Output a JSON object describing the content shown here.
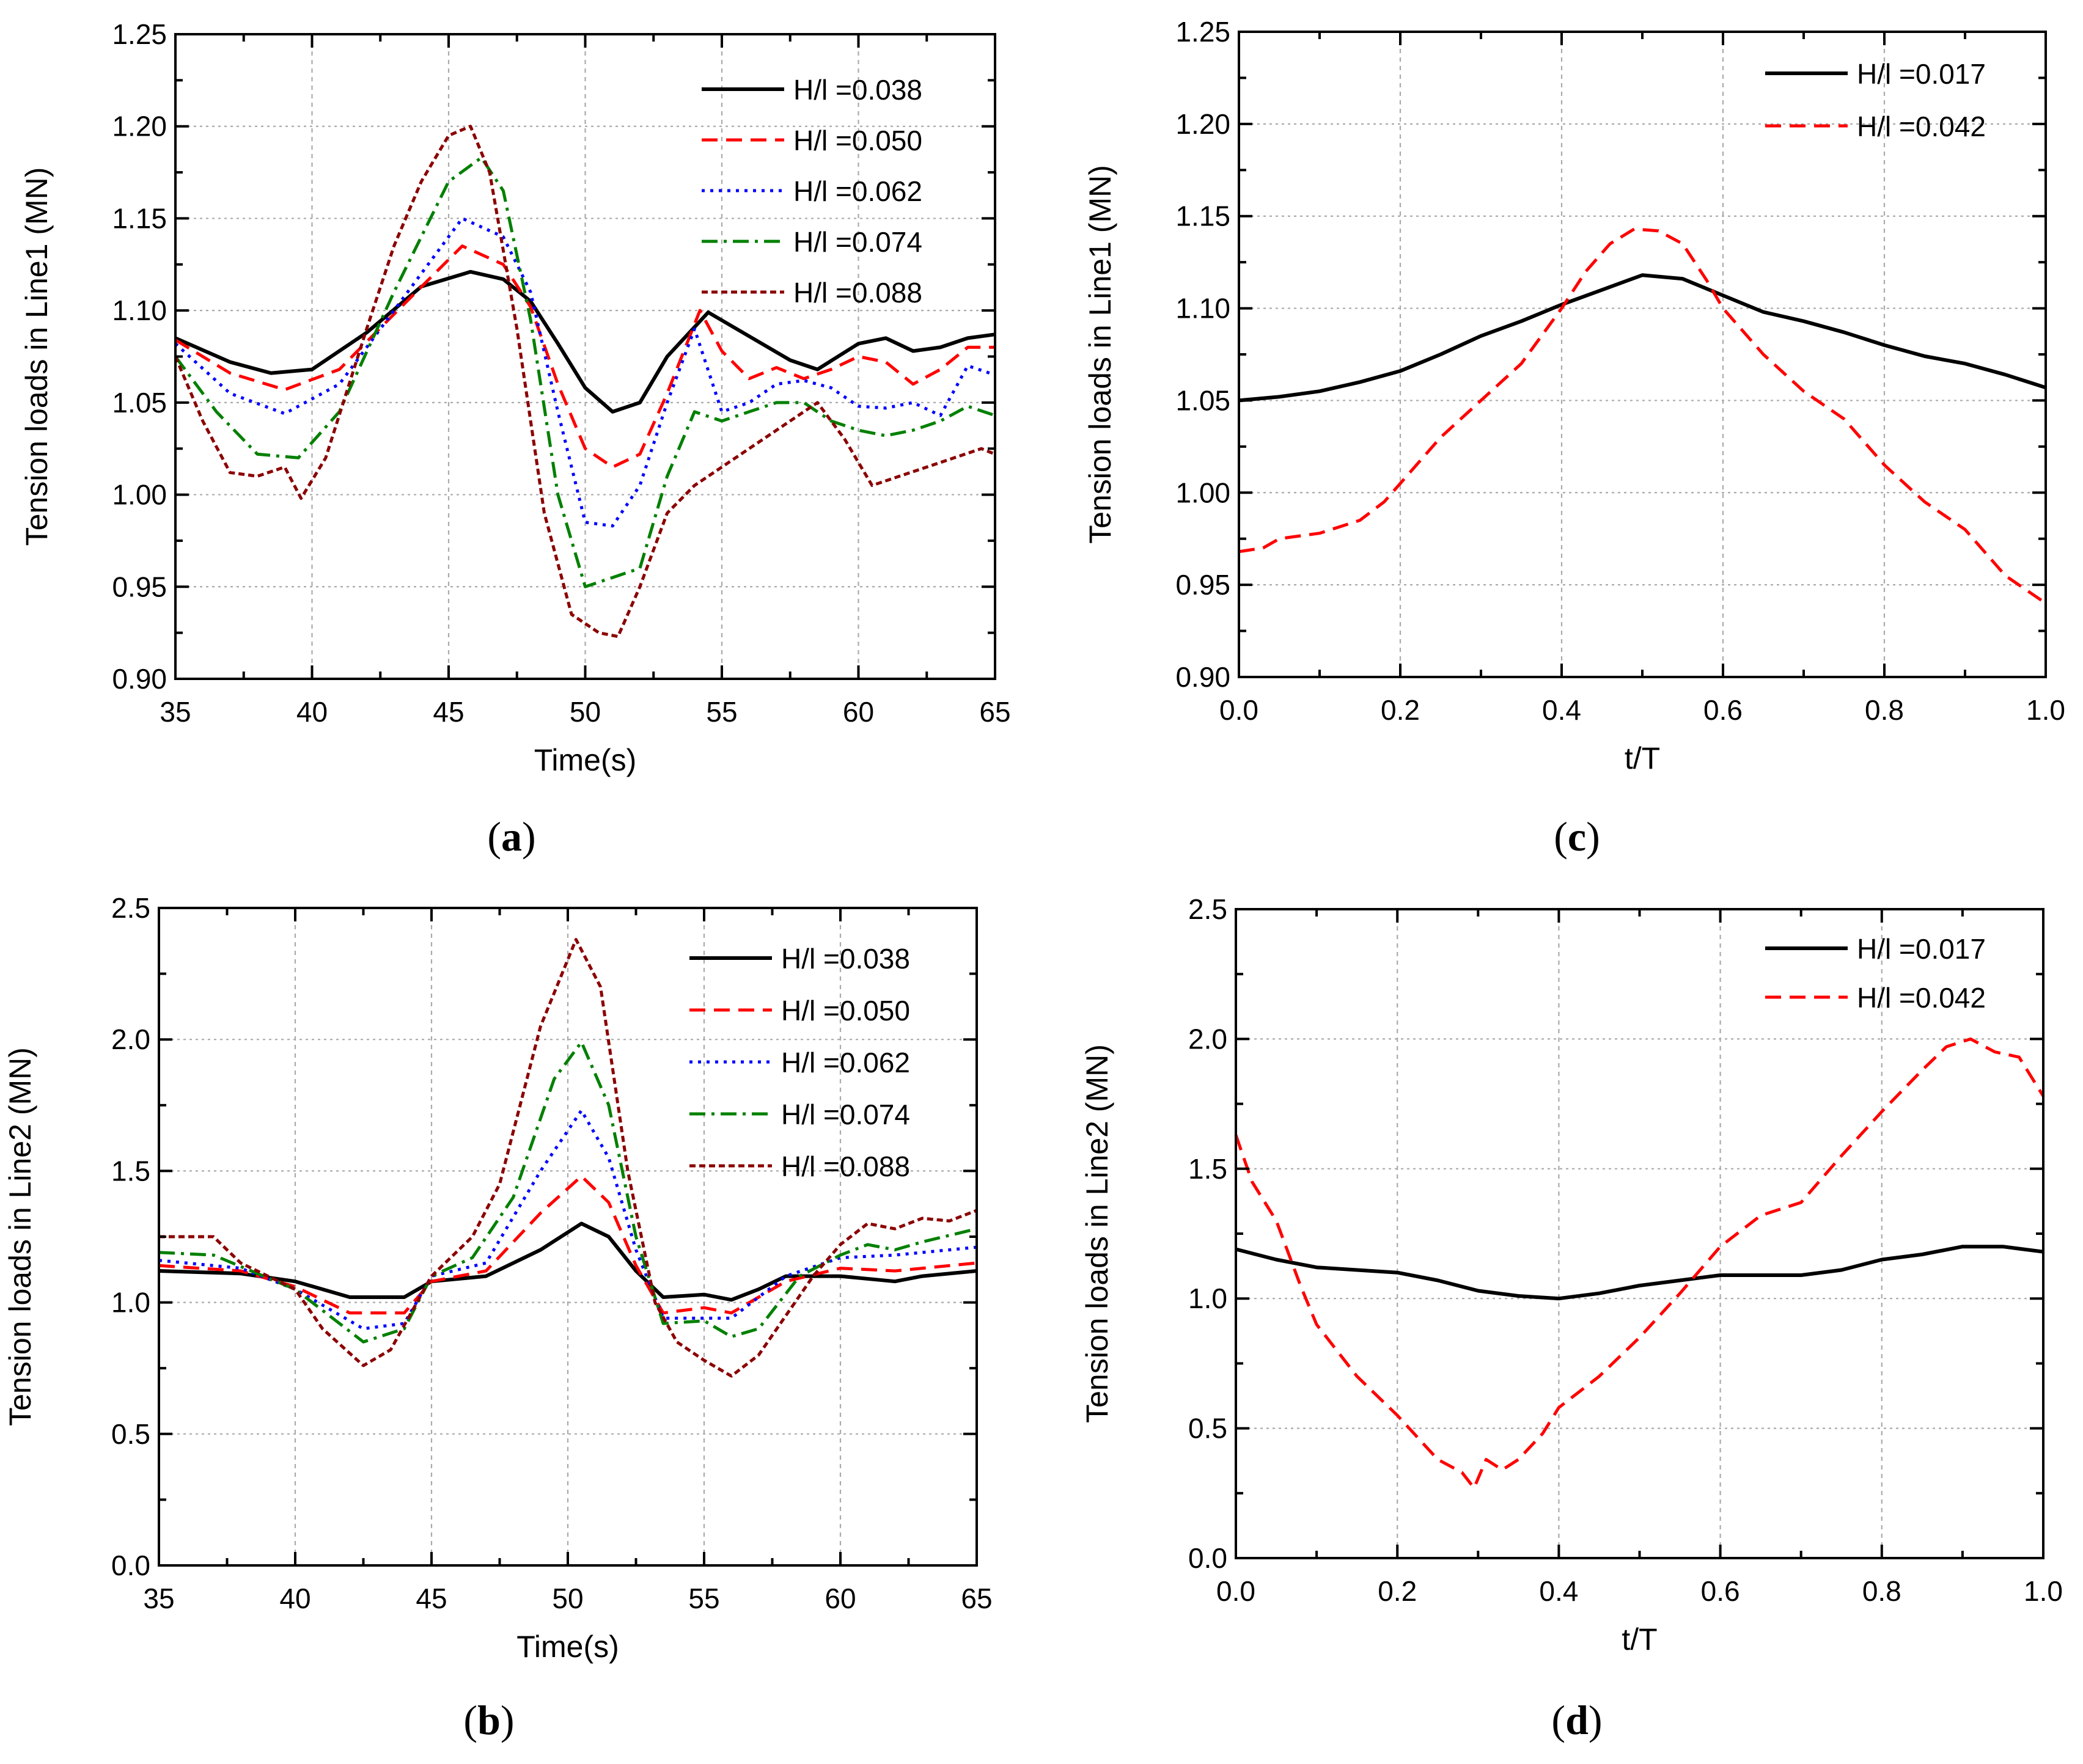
{
  "figure": {
    "captions": {
      "a": "a",
      "b": "b",
      "c": "c",
      "d": "d"
    }
  },
  "chart_data": [
    {
      "id": "a",
      "type": "line",
      "xlabel": "Time(s)",
      "ylabel": "Tension loads in Line1 (MN)",
      "xlim": [
        35,
        65
      ],
      "ylim": [
        0.9,
        1.25
      ],
      "xticks": [
        "35",
        "40",
        "45",
        "50",
        "55",
        "60",
        "65"
      ],
      "yticks": [
        "0.90",
        "0.95",
        "1.00",
        "1.05",
        "1.10",
        "1.15",
        "1.20",
        "1.25"
      ],
      "grid": true,
      "legend_position": "top-right",
      "series": [
        {
          "name": "H/l =0.038",
          "color": "#000000",
          "dash": "solid",
          "x": [
            35,
            37,
            38.5,
            40,
            42,
            44,
            45.8,
            47,
            48,
            49,
            50,
            51,
            52,
            53,
            54.5,
            56,
            57.5,
            58.5,
            60,
            61,
            62,
            63,
            64,
            65
          ],
          "y": [
            1.085,
            1.072,
            1.066,
            1.068,
            1.088,
            1.113,
            1.121,
            1.117,
            1.105,
            1.082,
            1.058,
            1.045,
            1.05,
            1.075,
            1.099,
            1.086,
            1.073,
            1.068,
            1.082,
            1.085,
            1.078,
            1.08,
            1.085,
            1.087
          ]
        },
        {
          "name": "H/l =0.050",
          "color": "#ff0000",
          "dash": "dashed",
          "x": [
            35,
            37,
            39,
            41,
            43,
            45.5,
            47,
            48,
            49,
            50,
            51,
            52,
            53,
            54.2,
            55,
            56,
            57,
            58,
            59,
            60,
            61,
            62,
            63,
            64,
            65
          ],
          "y": [
            1.084,
            1.066,
            1.057,
            1.068,
            1.098,
            1.135,
            1.125,
            1.102,
            1.06,
            1.025,
            1.015,
            1.022,
            1.055,
            1.1,
            1.078,
            1.063,
            1.069,
            1.063,
            1.068,
            1.075,
            1.072,
            1.06,
            1.068,
            1.08,
            1.08
          ]
        },
        {
          "name": "H/l =0.062",
          "color": "#0000ff",
          "dash": "dotted",
          "x": [
            35,
            37,
            39,
            41,
            43,
            45.5,
            47,
            48,
            49,
            50,
            51,
            52,
            53,
            54,
            55,
            56,
            57,
            58,
            59,
            60,
            61,
            62,
            63,
            64,
            65
          ],
          "y": [
            1.082,
            1.055,
            1.044,
            1.06,
            1.1,
            1.15,
            1.14,
            1.11,
            1.045,
            0.985,
            0.983,
            1.005,
            1.05,
            1.09,
            1.045,
            1.05,
            1.06,
            1.062,
            1.058,
            1.048,
            1.047,
            1.05,
            1.043,
            1.07,
            1.065
          ]
        },
        {
          "name": "H/l =0.074",
          "color": "#008000",
          "dash": "dashdot",
          "x": [
            35,
            36.5,
            38,
            39.5,
            41,
            43,
            45,
            46.2,
            47,
            48,
            49,
            50,
            51,
            52,
            53,
            54,
            55,
            56,
            57,
            58,
            59,
            60,
            61,
            62,
            63,
            64,
            65
          ],
          "y": [
            1.075,
            1.045,
            1.022,
            1.02,
            1.045,
            1.11,
            1.17,
            1.183,
            1.165,
            1.095,
            1.0,
            0.95,
            0.955,
            0.96,
            1.01,
            1.045,
            1.04,
            1.045,
            1.05,
            1.05,
            1.04,
            1.035,
            1.032,
            1.035,
            1.04,
            1.048,
            1.043
          ]
        },
        {
          "name": "H/l =0.088",
          "color": "#8b0000",
          "dash": "shortdash",
          "x": [
            35,
            36,
            37,
            38,
            39,
            39.6,
            40.5,
            42,
            43,
            44,
            45,
            45.8,
            46.5,
            47.5,
            48.5,
            49.5,
            50.5,
            51.2,
            52,
            53,
            54,
            55,
            56,
            57,
            58,
            58.5,
            59.5,
            60.5,
            61.5,
            62.5,
            63.5,
            64.5,
            65
          ],
          "y": [
            1.075,
            1.04,
            1.012,
            1.01,
            1.015,
            0.998,
            1.02,
            1.09,
            1.135,
            1.17,
            1.195,
            1.2,
            1.175,
            1.09,
            0.99,
            0.935,
            0.925,
            0.923,
            0.95,
            0.99,
            1.005,
            1.015,
            1.025,
            1.035,
            1.045,
            1.05,
            1.03,
            1.005,
            1.01,
            1.015,
            1.02,
            1.025,
            1.022
          ]
        }
      ]
    },
    {
      "id": "b",
      "type": "line",
      "xlabel": "Time(s)",
      "ylabel": "Tension loads in Line2 (MN)",
      "xlim": [
        35,
        65
      ],
      "ylim": [
        0.0,
        2.5
      ],
      "xticks": [
        "35",
        "40",
        "45",
        "50",
        "55",
        "60",
        "65"
      ],
      "yticks": [
        "0.0",
        "0.5",
        "1.0",
        "1.5",
        "2.0",
        "2.5"
      ],
      "grid": true,
      "legend_position": "top-right",
      "series": [
        {
          "name": "H/l =0.038",
          "color": "#000000",
          "dash": "solid",
          "x": [
            35,
            38,
            40,
            42,
            44,
            45,
            47,
            49,
            50.5,
            51.5,
            52.5,
            53.5,
            55,
            56,
            57,
            58,
            60,
            62,
            63,
            65
          ],
          "y": [
            1.12,
            1.11,
            1.08,
            1.02,
            1.02,
            1.08,
            1.1,
            1.2,
            1.3,
            1.25,
            1.12,
            1.02,
            1.03,
            1.01,
            1.05,
            1.1,
            1.1,
            1.08,
            1.1,
            1.12
          ]
        },
        {
          "name": "H/l =0.050",
          "color": "#ff0000",
          "dash": "dashed",
          "x": [
            35,
            38,
            40,
            42,
            44,
            45,
            47,
            49,
            50.5,
            51.5,
            52.5,
            53.5,
            55,
            56,
            58,
            60,
            62,
            65
          ],
          "y": [
            1.14,
            1.12,
            1.06,
            0.96,
            0.96,
            1.08,
            1.12,
            1.34,
            1.48,
            1.38,
            1.14,
            0.96,
            0.98,
            0.96,
            1.08,
            1.13,
            1.12,
            1.15
          ]
        },
        {
          "name": "H/l =0.062",
          "color": "#0000ff",
          "dash": "dotted",
          "x": [
            35,
            38,
            40,
            42.5,
            44,
            45,
            47,
            49,
            50.5,
            51.5,
            52.5,
            53.5,
            55,
            56,
            58,
            60,
            62,
            65
          ],
          "y": [
            1.16,
            1.13,
            1.05,
            0.9,
            0.92,
            1.1,
            1.15,
            1.5,
            1.73,
            1.55,
            1.2,
            0.94,
            0.94,
            0.94,
            1.1,
            1.17,
            1.18,
            1.21
          ]
        },
        {
          "name": "H/l =0.074",
          "color": "#008000",
          "dash": "dashdot",
          "x": [
            35,
            37,
            40,
            42.5,
            44,
            45,
            46.5,
            48,
            49.5,
            50.5,
            51.5,
            52.5,
            53.5,
            55,
            56,
            57,
            58.5,
            60,
            61,
            62,
            63,
            65
          ],
          "y": [
            1.19,
            1.18,
            1.05,
            0.85,
            0.9,
            1.1,
            1.17,
            1.4,
            1.85,
            1.99,
            1.75,
            1.25,
            0.92,
            0.93,
            0.87,
            0.9,
            1.1,
            1.18,
            1.22,
            1.2,
            1.23,
            1.28
          ]
        },
        {
          "name": "H/l =0.088",
          "color": "#8b0000",
          "dash": "shortdash",
          "x": [
            35,
            37,
            38,
            40,
            41,
            42.5,
            43.5,
            45,
            46.5,
            47.5,
            49,
            50.3,
            51.2,
            52.2,
            53.2,
            54,
            55,
            56,
            57,
            58,
            59,
            60,
            61,
            62,
            63,
            64,
            65
          ],
          "y": [
            1.25,
            1.25,
            1.15,
            1.05,
            0.9,
            0.76,
            0.82,
            1.1,
            1.25,
            1.45,
            2.05,
            2.38,
            2.2,
            1.5,
            1.0,
            0.85,
            0.78,
            0.72,
            0.8,
            0.95,
            1.1,
            1.22,
            1.3,
            1.28,
            1.32,
            1.31,
            1.35
          ]
        }
      ]
    },
    {
      "id": "c",
      "type": "line",
      "xlabel": "t/T",
      "ylabel": "Tension loads in Line1 (MN)",
      "xlim": [
        0.0,
        1.0
      ],
      "ylim": [
        0.9,
        1.25
      ],
      "xticks": [
        "0.0",
        "0.2",
        "0.4",
        "0.6",
        "0.8",
        "1.0"
      ],
      "yticks": [
        "0.90",
        "0.95",
        "1.00",
        "1.05",
        "1.10",
        "1.15",
        "1.20",
        "1.25"
      ],
      "grid": true,
      "legend_position": "top-right",
      "series": [
        {
          "name": "H/l =0.017",
          "color": "#000000",
          "dash": "solid",
          "x": [
            0.0,
            0.05,
            0.1,
            0.15,
            0.2,
            0.25,
            0.3,
            0.35,
            0.4,
            0.45,
            0.5,
            0.55,
            0.6,
            0.65,
            0.7,
            0.75,
            0.8,
            0.85,
            0.9,
            0.95,
            1.0
          ],
          "y": [
            1.05,
            1.052,
            1.055,
            1.06,
            1.066,
            1.075,
            1.085,
            1.093,
            1.102,
            1.11,
            1.118,
            1.116,
            1.107,
            1.098,
            1.093,
            1.087,
            1.08,
            1.074,
            1.07,
            1.064,
            1.057
          ]
        },
        {
          "name": "H/l =0.042",
          "color": "#ff0000",
          "dash": "dashed",
          "x": [
            0.0,
            0.03,
            0.05,
            0.1,
            0.15,
            0.18,
            0.2,
            0.25,
            0.3,
            0.35,
            0.4,
            0.43,
            0.46,
            0.49,
            0.52,
            0.55,
            0.58,
            0.6,
            0.65,
            0.7,
            0.75,
            0.8,
            0.85,
            0.9,
            0.95,
            1.0
          ],
          "y": [
            0.968,
            0.97,
            0.975,
            0.978,
            0.985,
            0.995,
            1.005,
            1.03,
            1.05,
            1.07,
            1.1,
            1.12,
            1.135,
            1.143,
            1.142,
            1.135,
            1.115,
            1.1,
            1.075,
            1.055,
            1.04,
            1.015,
            0.995,
            0.98,
            0.955,
            0.94
          ]
        }
      ]
    },
    {
      "id": "d",
      "type": "line",
      "xlabel": "t/T",
      "ylabel": "Tension loads in Line2 (MN)",
      "xlim": [
        0.0,
        1.0
      ],
      "ylim": [
        0.0,
        2.5
      ],
      "xticks": [
        "0.0",
        "0.2",
        "0.4",
        "0.6",
        "0.8",
        "1.0"
      ],
      "yticks": [
        "0.0",
        "0.5",
        "1.0",
        "1.5",
        "2.0",
        "2.5"
      ],
      "grid": true,
      "legend_position": "top-right",
      "series": [
        {
          "name": "H/l =0.017",
          "color": "#000000",
          "dash": "solid",
          "x": [
            0.0,
            0.05,
            0.1,
            0.15,
            0.2,
            0.25,
            0.3,
            0.35,
            0.4,
            0.45,
            0.5,
            0.55,
            0.6,
            0.65,
            0.7,
            0.75,
            0.8,
            0.85,
            0.9,
            0.95,
            1.0
          ],
          "y": [
            1.19,
            1.15,
            1.12,
            1.11,
            1.1,
            1.07,
            1.03,
            1.01,
            1.0,
            1.02,
            1.05,
            1.07,
            1.09,
            1.09,
            1.09,
            1.11,
            1.15,
            1.17,
            1.2,
            1.2,
            1.18
          ]
        },
        {
          "name": "H/l =0.042",
          "color": "#ff0000",
          "dash": "dashed",
          "x": [
            0.0,
            0.02,
            0.05,
            0.08,
            0.1,
            0.15,
            0.2,
            0.25,
            0.28,
            0.295,
            0.31,
            0.33,
            0.35,
            0.38,
            0.4,
            0.45,
            0.5,
            0.55,
            0.6,
            0.65,
            0.7,
            0.75,
            0.8,
            0.85,
            0.88,
            0.91,
            0.94,
            0.97,
            1.0
          ],
          "y": [
            1.63,
            1.45,
            1.3,
            1.05,
            0.9,
            0.7,
            0.55,
            0.38,
            0.33,
            0.27,
            0.38,
            0.34,
            0.38,
            0.48,
            0.58,
            0.7,
            0.85,
            1.02,
            1.2,
            1.32,
            1.37,
            1.55,
            1.72,
            1.88,
            1.97,
            2.0,
            1.95,
            1.93,
            1.78
          ]
        }
      ]
    }
  ]
}
